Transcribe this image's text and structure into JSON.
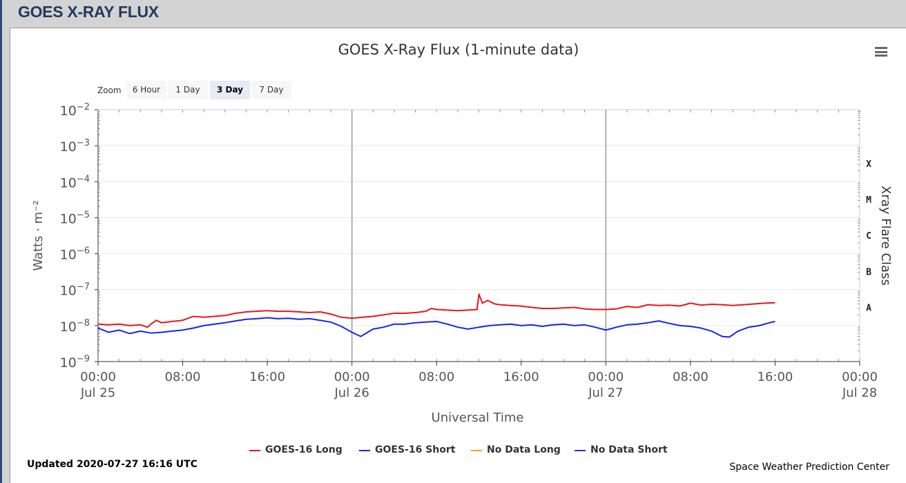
{
  "header": {
    "title": "GOES X-RAY FLUX"
  },
  "chart_title": "GOES X-Ray Flux (1-minute data)",
  "zoom": {
    "label": "Zoom",
    "buttons": [
      {
        "label": "6 Hour",
        "active": false
      },
      {
        "label": "1 Day",
        "active": false
      },
      {
        "label": "3 Day",
        "active": true
      },
      {
        "label": "7 Day",
        "active": false
      }
    ]
  },
  "footer": {
    "updated": "Updated 2020-07-27 16:16 UTC",
    "credit": "Space Weather Prediction Center"
  },
  "chart_data": {
    "type": "line",
    "title": "GOES X-Ray Flux (1-minute data)",
    "xlabel": "Universal Time",
    "ylabel": "Watts · m⁻²",
    "y2label": "Xray Flare Class",
    "yscale": "log",
    "ylim": [
      1e-09,
      0.01
    ],
    "xlim": [
      "2020-07-25T00:00",
      "2020-07-28T00:00"
    ],
    "grid": true,
    "legend_position": "bottom-center",
    "y_ticks": [
      {
        "mantissa": "10",
        "exponent": "−9",
        "value": 1e-09
      },
      {
        "mantissa": "10",
        "exponent": "−8",
        "value": 1e-08
      },
      {
        "mantissa": "10",
        "exponent": "−7",
        "value": 1e-07
      },
      {
        "mantissa": "10",
        "exponent": "−6",
        "value": 1e-06
      },
      {
        "mantissa": "10",
        "exponent": "−5",
        "value": 1e-05
      },
      {
        "mantissa": "10",
        "exponent": "−4",
        "value": 0.0001
      },
      {
        "mantissa": "10",
        "exponent": "−3",
        "value": 0.001
      },
      {
        "mantissa": "10",
        "exponent": "−2",
        "value": 0.01
      }
    ],
    "x_ticks": [
      {
        "time": "2020-07-25T00:00",
        "label": "00:00",
        "sublabel": "Jul 25"
      },
      {
        "time": "2020-07-25T08:00",
        "label": "08:00",
        "sublabel": ""
      },
      {
        "time": "2020-07-25T16:00",
        "label": "16:00",
        "sublabel": ""
      },
      {
        "time": "2020-07-26T00:00",
        "label": "00:00",
        "sublabel": "Jul 26"
      },
      {
        "time": "2020-07-26T08:00",
        "label": "08:00",
        "sublabel": ""
      },
      {
        "time": "2020-07-26T16:00",
        "label": "16:00",
        "sublabel": ""
      },
      {
        "time": "2020-07-27T00:00",
        "label": "00:00",
        "sublabel": "Jul 27"
      },
      {
        "time": "2020-07-27T08:00",
        "label": "08:00",
        "sublabel": ""
      },
      {
        "time": "2020-07-27T16:00",
        "label": "16:00",
        "sublabel": ""
      },
      {
        "time": "2020-07-28T00:00",
        "label": "00:00",
        "sublabel": "Jul 28"
      }
    ],
    "day_lines": [
      "2020-07-26T00:00",
      "2020-07-27T00:00"
    ],
    "flare_classes": [
      {
        "label": "A",
        "value": 1e-08
      },
      {
        "label": "B",
        "value": 1e-07
      },
      {
        "label": "C",
        "value": 1e-06
      },
      {
        "label": "M",
        "value": 1e-05
      },
      {
        "label": "X",
        "value": 0.0001
      }
    ],
    "series": [
      {
        "name": "GOES-16 Long",
        "color": "#e8151b",
        "points": [
          [
            "2020-07-25T00:00",
            1.1e-08
          ],
          [
            "2020-07-25T01:00",
            1.05e-08
          ],
          [
            "2020-07-25T02:00",
            1.1e-08
          ],
          [
            "2020-07-25T03:00",
            1e-08
          ],
          [
            "2020-07-25T04:00",
            1.05e-08
          ],
          [
            "2020-07-25T04:40",
            9e-09
          ],
          [
            "2020-07-25T05:00",
            1.1e-08
          ],
          [
            "2020-07-25T05:30",
            1.4e-08
          ],
          [
            "2020-07-25T06:00",
            1.2e-08
          ],
          [
            "2020-07-25T07:00",
            1.3e-08
          ],
          [
            "2020-07-25T08:00",
            1.4e-08
          ],
          [
            "2020-07-25T09:00",
            1.8e-08
          ],
          [
            "2020-07-25T10:00",
            1.7e-08
          ],
          [
            "2020-07-25T11:00",
            1.8e-08
          ],
          [
            "2020-07-25T12:00",
            1.9e-08
          ],
          [
            "2020-07-25T13:00",
            2.2e-08
          ],
          [
            "2020-07-25T14:00",
            2.4e-08
          ],
          [
            "2020-07-25T15:00",
            2.5e-08
          ],
          [
            "2020-07-25T16:00",
            2.6e-08
          ],
          [
            "2020-07-25T17:00",
            2.5e-08
          ],
          [
            "2020-07-25T18:00",
            2.5e-08
          ],
          [
            "2020-07-25T19:00",
            2.4e-08
          ],
          [
            "2020-07-25T20:00",
            2.3e-08
          ],
          [
            "2020-07-25T21:00",
            2.4e-08
          ],
          [
            "2020-07-25T22:00",
            2.1e-08
          ],
          [
            "2020-07-25T23:00",
            1.7e-08
          ],
          [
            "2020-07-26T00:00",
            1.6e-08
          ],
          [
            "2020-07-26T01:00",
            1.7e-08
          ],
          [
            "2020-07-26T02:00",
            1.8e-08
          ],
          [
            "2020-07-26T03:00",
            2e-08
          ],
          [
            "2020-07-26T04:00",
            2.2e-08
          ],
          [
            "2020-07-26T05:00",
            2.2e-08
          ],
          [
            "2020-07-26T06:00",
            2.3e-08
          ],
          [
            "2020-07-26T07:00",
            2.5e-08
          ],
          [
            "2020-07-26T07:30",
            3e-08
          ],
          [
            "2020-07-26T08:00",
            2.8e-08
          ],
          [
            "2020-07-26T09:00",
            2.7e-08
          ],
          [
            "2020-07-26T10:00",
            2.6e-08
          ],
          [
            "2020-07-26T11:00",
            2.7e-08
          ],
          [
            "2020-07-26T11:50",
            2.8e-08
          ],
          [
            "2020-07-26T12:00",
            7.5e-08
          ],
          [
            "2020-07-26T12:20",
            4.2e-08
          ],
          [
            "2020-07-26T12:50",
            5e-08
          ],
          [
            "2020-07-26T13:30",
            4e-08
          ],
          [
            "2020-07-26T14:00",
            3.8e-08
          ],
          [
            "2020-07-26T15:00",
            3.6e-08
          ],
          [
            "2020-07-26T16:00",
            3.5e-08
          ],
          [
            "2020-07-26T17:00",
            3.2e-08
          ],
          [
            "2020-07-26T18:00",
            3e-08
          ],
          [
            "2020-07-26T19:00",
            3e-08
          ],
          [
            "2020-07-26T20:00",
            3.1e-08
          ],
          [
            "2020-07-26T21:00",
            3.2e-08
          ],
          [
            "2020-07-26T22:00",
            2.9e-08
          ],
          [
            "2020-07-26T23:00",
            2.8e-08
          ],
          [
            "2020-07-27T00:00",
            2.8e-08
          ],
          [
            "2020-07-27T01:00",
            2.9e-08
          ],
          [
            "2020-07-27T02:00",
            3.4e-08
          ],
          [
            "2020-07-27T03:00",
            3.2e-08
          ],
          [
            "2020-07-27T04:00",
            3.8e-08
          ],
          [
            "2020-07-27T05:00",
            3.6e-08
          ],
          [
            "2020-07-27T06:00",
            3.7e-08
          ],
          [
            "2020-07-27T07:00",
            3.5e-08
          ],
          [
            "2020-07-27T08:00",
            4.2e-08
          ],
          [
            "2020-07-27T09:00",
            3.7e-08
          ],
          [
            "2020-07-27T10:00",
            3.9e-08
          ],
          [
            "2020-07-27T11:00",
            3.8e-08
          ],
          [
            "2020-07-27T12:00",
            3.6e-08
          ],
          [
            "2020-07-27T13:00",
            3.8e-08
          ],
          [
            "2020-07-27T14:00",
            4e-08
          ],
          [
            "2020-07-27T15:00",
            4.2e-08
          ],
          [
            "2020-07-27T16:00",
            4.3e-08
          ]
        ]
      },
      {
        "name": "GOES-16 Short",
        "color": "#1a23e6",
        "points": [
          [
            "2020-07-25T00:00",
            8.5e-09
          ],
          [
            "2020-07-25T01:00",
            6.5e-09
          ],
          [
            "2020-07-25T02:00",
            7.5e-09
          ],
          [
            "2020-07-25T03:00",
            6e-09
          ],
          [
            "2020-07-25T04:00",
            7e-09
          ],
          [
            "2020-07-25T05:00",
            6.2e-09
          ],
          [
            "2020-07-25T06:00",
            6.5e-09
          ],
          [
            "2020-07-25T07:00",
            7e-09
          ],
          [
            "2020-07-25T08:00",
            7.5e-09
          ],
          [
            "2020-07-25T09:00",
            8.5e-09
          ],
          [
            "2020-07-25T10:00",
            1e-08
          ],
          [
            "2020-07-25T11:00",
            1.1e-08
          ],
          [
            "2020-07-25T12:00",
            1.2e-08
          ],
          [
            "2020-07-25T13:00",
            1.35e-08
          ],
          [
            "2020-07-25T14:00",
            1.5e-08
          ],
          [
            "2020-07-25T15:00",
            1.55e-08
          ],
          [
            "2020-07-25T16:00",
            1.65e-08
          ],
          [
            "2020-07-25T17:00",
            1.55e-08
          ],
          [
            "2020-07-25T18:00",
            1.6e-08
          ],
          [
            "2020-07-25T19:00",
            1.5e-08
          ],
          [
            "2020-07-25T20:00",
            1.55e-08
          ],
          [
            "2020-07-25T21:00",
            1.4e-08
          ],
          [
            "2020-07-25T22:00",
            1.25e-08
          ],
          [
            "2020-07-25T23:00",
            9.5e-09
          ],
          [
            "2020-07-26T00:00",
            6.5e-09
          ],
          [
            "2020-07-26T00:50",
            5e-09
          ],
          [
            "2020-07-26T02:00",
            8e-09
          ],
          [
            "2020-07-26T03:00",
            9e-09
          ],
          [
            "2020-07-26T04:00",
            1.1e-08
          ],
          [
            "2020-07-26T05:00",
            1.1e-08
          ],
          [
            "2020-07-26T06:00",
            1.2e-08
          ],
          [
            "2020-07-26T07:00",
            1.25e-08
          ],
          [
            "2020-07-26T08:00",
            1.3e-08
          ],
          [
            "2020-07-26T09:00",
            1.1e-08
          ],
          [
            "2020-07-26T10:00",
            9e-09
          ],
          [
            "2020-07-26T11:00",
            8e-09
          ],
          [
            "2020-07-26T12:00",
            9e-09
          ],
          [
            "2020-07-26T13:00",
            1e-08
          ],
          [
            "2020-07-26T14:00",
            1.05e-08
          ],
          [
            "2020-07-26T15:00",
            1.1e-08
          ],
          [
            "2020-07-26T16:00",
            1e-08
          ],
          [
            "2020-07-26T17:00",
            1.05e-08
          ],
          [
            "2020-07-26T18:00",
            9.5e-09
          ],
          [
            "2020-07-26T19:00",
            1.05e-08
          ],
          [
            "2020-07-26T20:00",
            1.1e-08
          ],
          [
            "2020-07-26T21:00",
            1e-08
          ],
          [
            "2020-07-26T22:00",
            1.05e-08
          ],
          [
            "2020-07-26T23:00",
            9e-09
          ],
          [
            "2020-07-27T00:00",
            7.5e-09
          ],
          [
            "2020-07-27T01:00",
            9e-09
          ],
          [
            "2020-07-27T02:00",
            1.05e-08
          ],
          [
            "2020-07-27T03:00",
            1.1e-08
          ],
          [
            "2020-07-27T04:00",
            1.2e-08
          ],
          [
            "2020-07-27T05:00",
            1.35e-08
          ],
          [
            "2020-07-27T06:00",
            1.15e-08
          ],
          [
            "2020-07-27T07:00",
            1e-08
          ],
          [
            "2020-07-27T08:00",
            9.5e-09
          ],
          [
            "2020-07-27T09:00",
            8.5e-09
          ],
          [
            "2020-07-27T10:00",
            7e-09
          ],
          [
            "2020-07-27T11:00",
            5e-09
          ],
          [
            "2020-07-27T11:40",
            4.8e-09
          ],
          [
            "2020-07-27T12:30",
            7e-09
          ],
          [
            "2020-07-27T13:30",
            9e-09
          ],
          [
            "2020-07-27T14:30",
            1e-08
          ],
          [
            "2020-07-27T15:30",
            1.2e-08
          ],
          [
            "2020-07-27T16:00",
            1.3e-08
          ]
        ]
      },
      {
        "name": "No Data Long",
        "color": "#f0a30a",
        "points": []
      },
      {
        "name": "No Data Short",
        "color": "#5a18c9",
        "points": []
      }
    ]
  }
}
